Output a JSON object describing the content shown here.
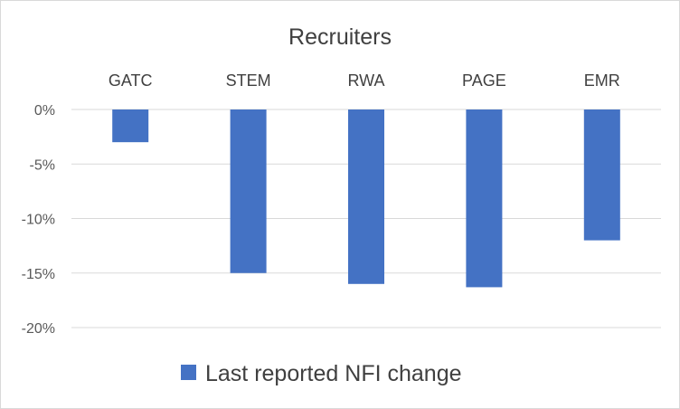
{
  "chart_data": {
    "type": "bar",
    "title": "Recruiters",
    "categories": [
      "GATC",
      "STEM",
      "RWA",
      "PAGE",
      "EMR"
    ],
    "series": [
      {
        "name": "Last reported NFI change",
        "values": [
          -3,
          -15,
          -16,
          -16.3,
          -12
        ],
        "color": "#4472C4"
      }
    ],
    "ylim": [
      -20,
      0
    ],
    "yticks": [
      "0%",
      "-5%",
      "-10%",
      "-15%",
      "-20%"
    ],
    "ytick_values": [
      0,
      -5,
      -10,
      -15,
      -20
    ],
    "grid": true,
    "legend_position": "bottom",
    "xlabel": "",
    "ylabel": ""
  }
}
